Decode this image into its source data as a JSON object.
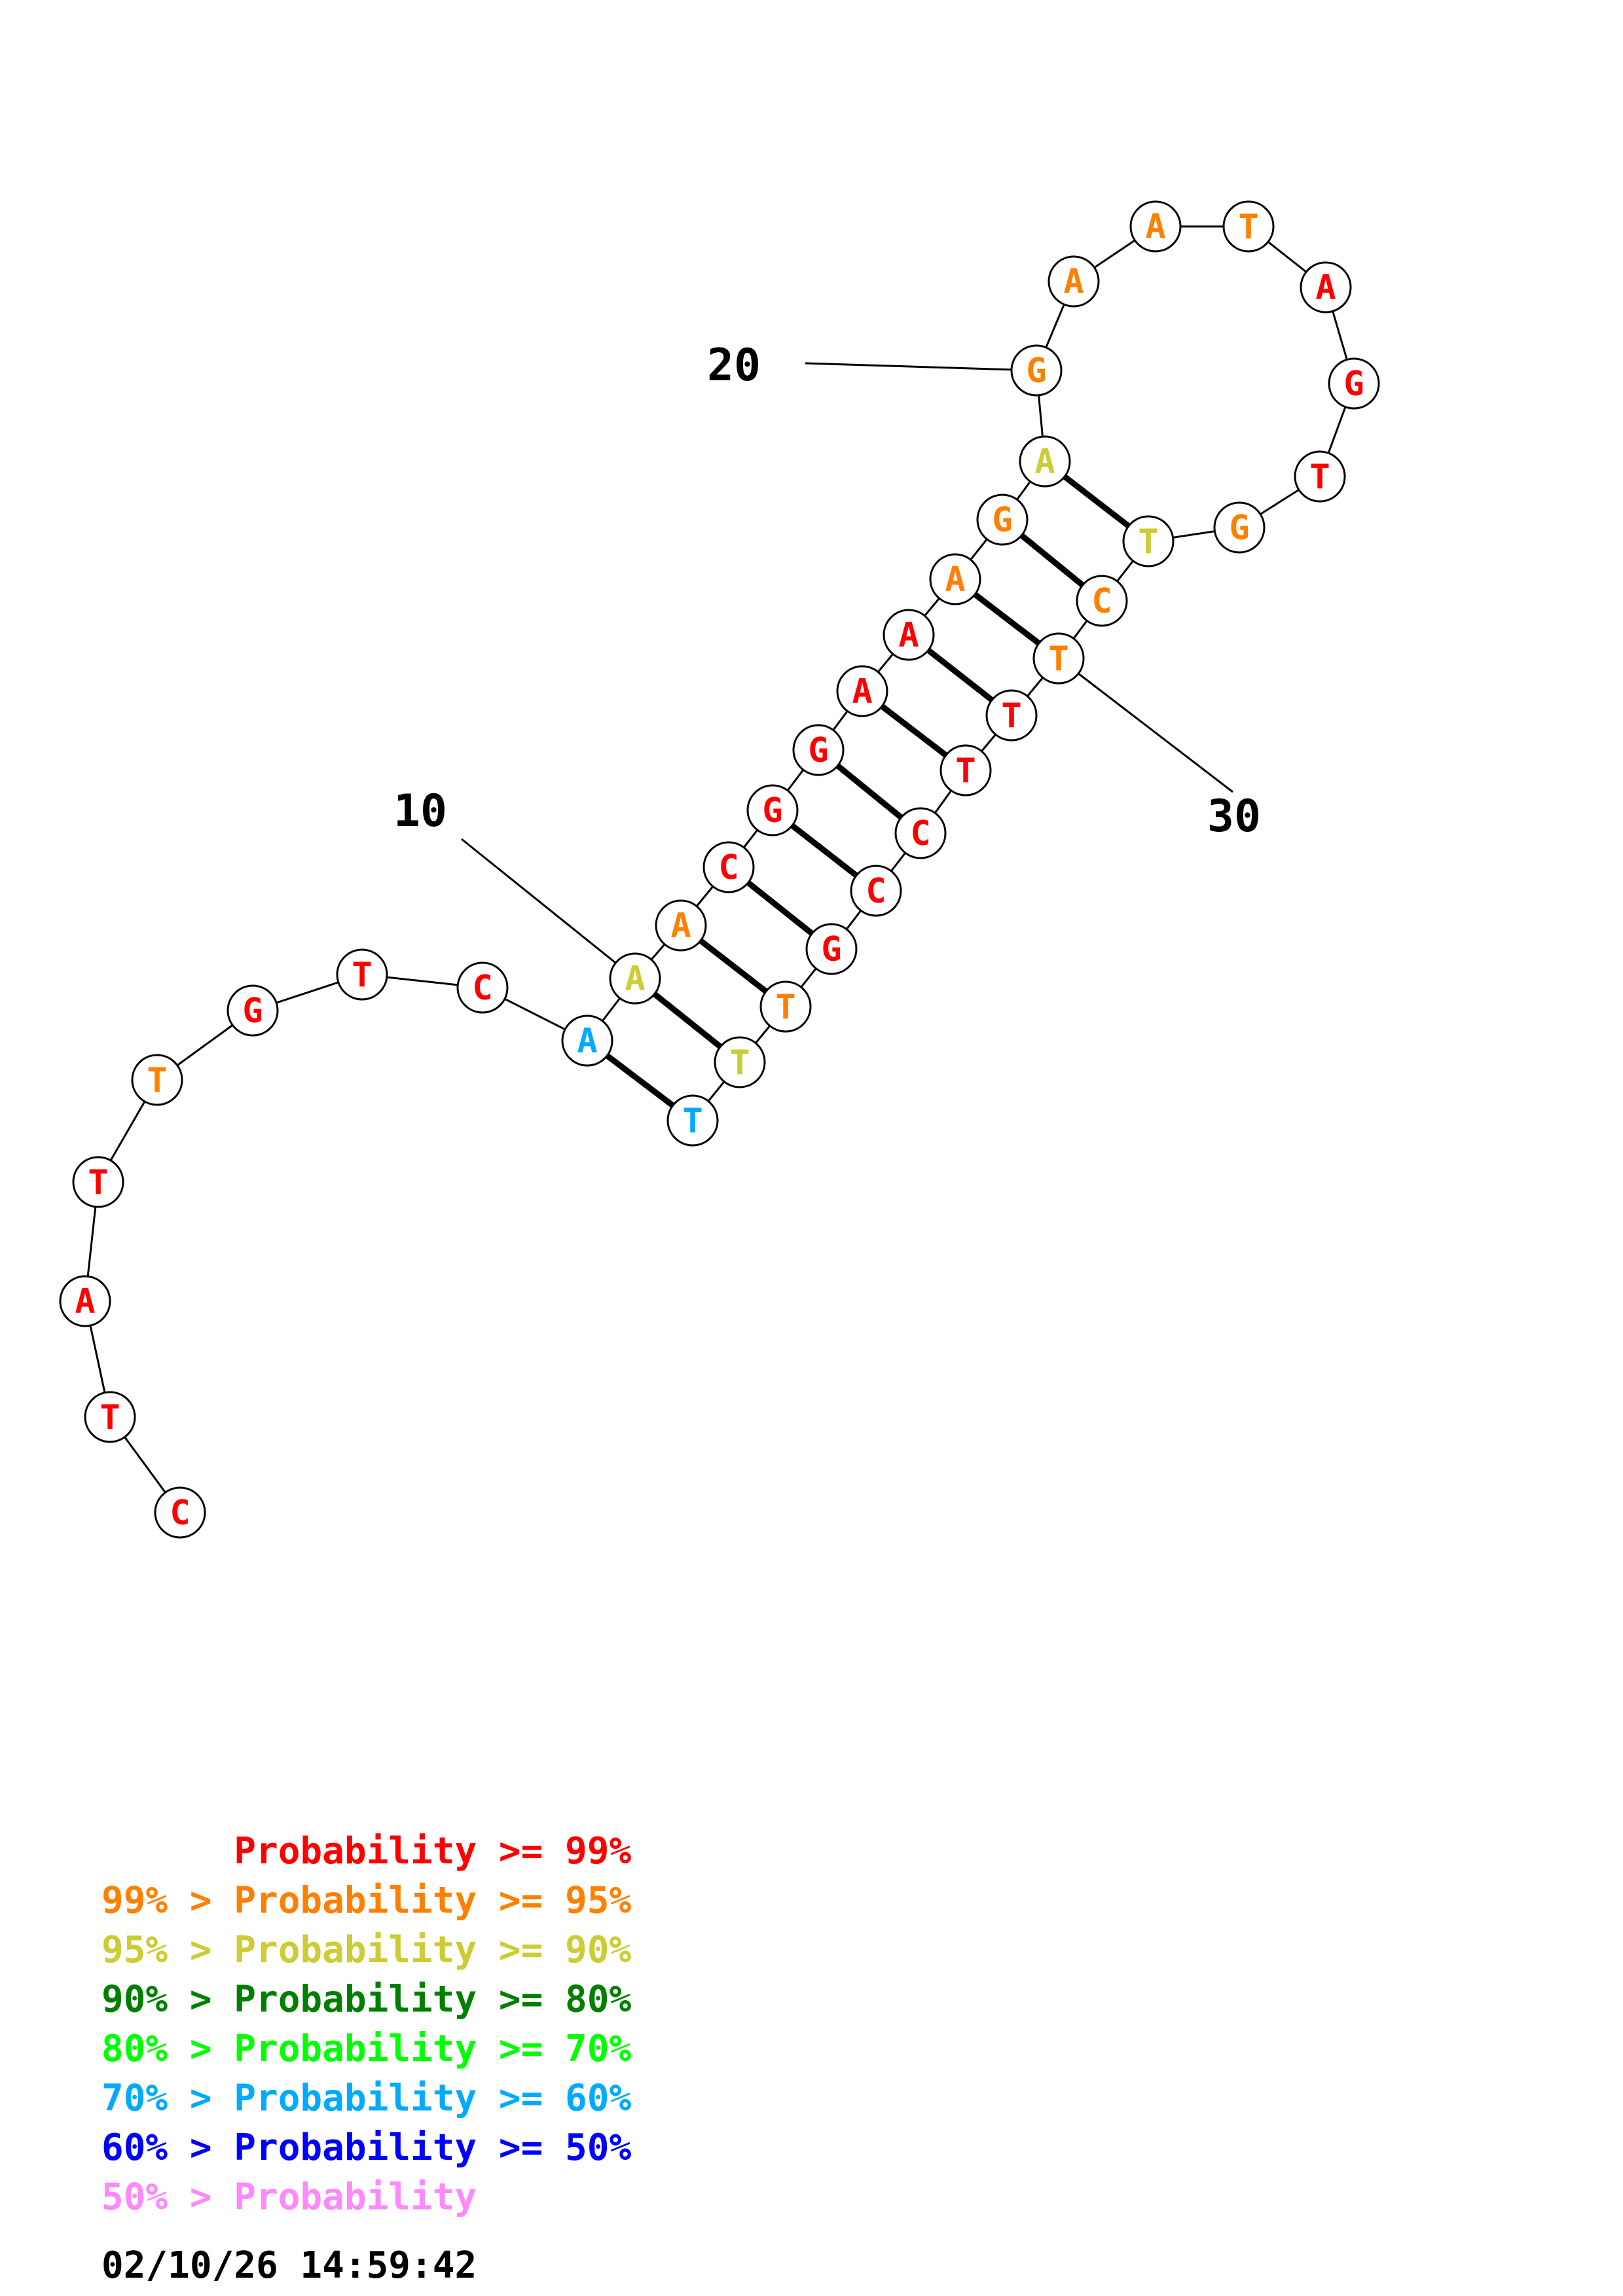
{
  "colors": {
    "p99": "#ff0000",
    "p95": "#ff8000",
    "p90": "#cccc33",
    "p80": "#007f00",
    "p70": "#00ff00",
    "p60": "#00aaff",
    "p50": "#0000ff",
    "plow": "#ff88ff"
  },
  "sequence": [
    {
      "base": "C",
      "p": "p99"
    },
    {
      "base": "T",
      "p": "p99"
    },
    {
      "base": "A",
      "p": "p99"
    },
    {
      "base": "T",
      "p": "p99"
    },
    {
      "base": "T",
      "p": "p95"
    },
    {
      "base": "G",
      "p": "p99"
    },
    {
      "base": "T",
      "p": "p99"
    },
    {
      "base": "C",
      "p": "p99"
    },
    {
      "base": "A",
      "p": "p60"
    },
    {
      "base": "A",
      "p": "p90"
    },
    {
      "base": "A",
      "p": "p95"
    },
    {
      "base": "C",
      "p": "p99"
    },
    {
      "base": "G",
      "p": "p99"
    },
    {
      "base": "G",
      "p": "p99"
    },
    {
      "base": "A",
      "p": "p99"
    },
    {
      "base": "A",
      "p": "p99"
    },
    {
      "base": "A",
      "p": "p95"
    },
    {
      "base": "G",
      "p": "p95"
    },
    {
      "base": "A",
      "p": "p90"
    },
    {
      "base": "G",
      "p": "p95"
    },
    {
      "base": "A",
      "p": "p95"
    },
    {
      "base": "A",
      "p": "p95"
    },
    {
      "base": "T",
      "p": "p95"
    },
    {
      "base": "A",
      "p": "p99"
    },
    {
      "base": "G",
      "p": "p99"
    },
    {
      "base": "T",
      "p": "p99"
    },
    {
      "base": "G",
      "p": "p95"
    },
    {
      "base": "T",
      "p": "p90"
    },
    {
      "base": "C",
      "p": "p95"
    },
    {
      "base": "T",
      "p": "p95"
    },
    {
      "base": "T",
      "p": "p99"
    },
    {
      "base": "T",
      "p": "p99"
    },
    {
      "base": "C",
      "p": "p99"
    },
    {
      "base": "C",
      "p": "p99"
    },
    {
      "base": "G",
      "p": "p99"
    },
    {
      "base": "T",
      "p": "p95"
    },
    {
      "base": "T",
      "p": "p90"
    },
    {
      "base": "T",
      "p": "p60"
    }
  ],
  "pairs": [
    [
      9,
      38
    ],
    [
      10,
      37
    ],
    [
      11,
      36
    ],
    [
      12,
      35
    ],
    [
      13,
      34
    ],
    [
      14,
      33
    ],
    [
      15,
      32
    ],
    [
      16,
      31
    ],
    [
      17,
      30
    ],
    [
      18,
      29
    ],
    [
      19,
      28
    ]
  ],
  "index_labels": [
    {
      "text": "10",
      "nucleotide": 10
    },
    {
      "text": "20",
      "nucleotide": 20
    },
    {
      "text": "30",
      "nucleotide": 30
    }
  ],
  "legend": [
    {
      "text": "      Probability >= 99%",
      "p": "p99"
    },
    {
      "text": "99% > Probability >= 95%",
      "p": "p95"
    },
    {
      "text": "95% > Probability >= 90%",
      "p": "p90"
    },
    {
      "text": "90% > Probability >= 80%",
      "p": "p80"
    },
    {
      "text": "80% > Probability >= 70%",
      "p": "p70"
    },
    {
      "text": "70% > Probability >= 60%",
      "p": "p60"
    },
    {
      "text": "60% > Probability >= 50%",
      "p": "p50"
    },
    {
      "text": "50% > Probability",
      "p": "plow"
    }
  ],
  "timestamp": "02/10/26 14:59:42"
}
